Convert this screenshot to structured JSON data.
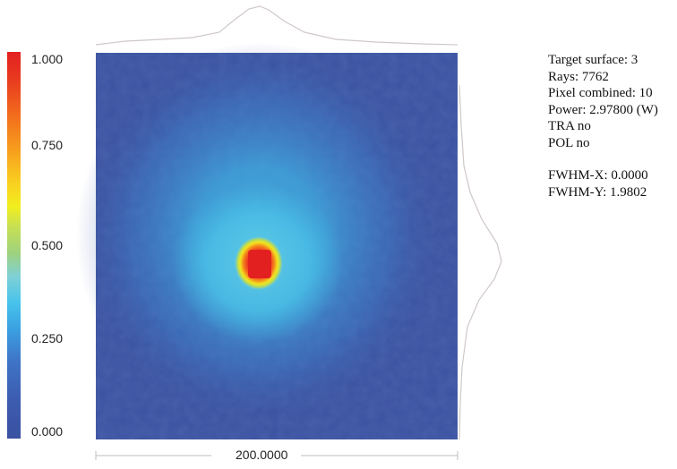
{
  "chart_data": {
    "type": "heatmap",
    "colorbar": {
      "ticks": [
        "1.000",
        "0.750",
        "0.500",
        "0.250",
        "0.000"
      ],
      "range": [
        0,
        1
      ]
    },
    "x_extent_label": "200.0000",
    "peak": {
      "x": 0.0,
      "y": 0.0,
      "value": 1.0
    },
    "colors": {
      "background_low": "#3a51a0",
      "mid": "#47c3ec",
      "high": "#e32020"
    }
  },
  "info": {
    "target_surface": "Target surface: 3",
    "rays": "Rays: 7762",
    "pixel_combined": "Pixel combined: 10",
    "power": "Power: 2.97800 (W)",
    "tra": "TRA no",
    "pol": "POL no",
    "fwhm_x": "FWHM-X: 0.0000",
    "fwhm_y": "FWHM-Y: 1.9802"
  }
}
